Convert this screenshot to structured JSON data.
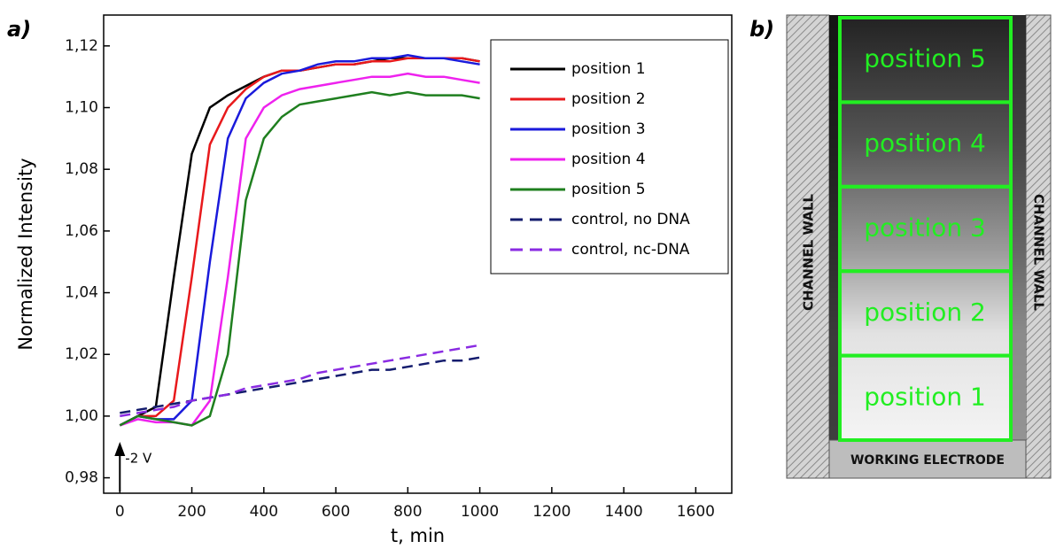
{
  "chart_data": {
    "type": "line",
    "panel_label": "a)",
    "x_label": "t, min",
    "y_label": "Normalized Intensity",
    "annotation": {
      "text": "-2 V",
      "x": 0
    },
    "x": [
      0,
      50,
      100,
      150,
      200,
      250,
      300,
      350,
      400,
      450,
      500,
      550,
      600,
      650,
      700,
      750,
      800,
      850,
      900,
      950,
      1000
    ],
    "series": [
      {
        "name": "position 1",
        "color": "#000000",
        "line_style": "solid",
        "values": [
          0.997,
          1.0,
          1.003,
          1.045,
          1.085,
          1.1,
          1.104,
          1.107,
          1.11,
          1.112,
          1.112,
          1.113,
          1.114,
          1.114,
          1.115,
          1.116,
          1.116,
          1.116,
          1.116,
          1.116,
          1.115
        ]
      },
      {
        "name": "position 2",
        "color": "#e8191c",
        "line_style": "solid",
        "values": [
          0.997,
          1.0,
          1.0,
          1.005,
          1.045,
          1.088,
          1.1,
          1.106,
          1.11,
          1.112,
          1.112,
          1.113,
          1.114,
          1.114,
          1.115,
          1.115,
          1.116,
          1.116,
          1.116,
          1.116,
          1.115
        ]
      },
      {
        "name": "position 3",
        "color": "#1a1adb",
        "line_style": "solid",
        "values": [
          0.997,
          1.0,
          0.999,
          0.999,
          1.005,
          1.05,
          1.09,
          1.103,
          1.108,
          1.111,
          1.112,
          1.114,
          1.115,
          1.115,
          1.116,
          1.116,
          1.117,
          1.116,
          1.116,
          1.115,
          1.114
        ]
      },
      {
        "name": "position 4",
        "color": "#ee22ee",
        "line_style": "solid",
        "values": [
          0.997,
          0.999,
          0.998,
          0.998,
          0.997,
          1.005,
          1.045,
          1.09,
          1.1,
          1.104,
          1.106,
          1.107,
          1.108,
          1.109,
          1.11,
          1.11,
          1.111,
          1.11,
          1.11,
          1.109,
          1.108
        ]
      },
      {
        "name": "position 5",
        "color": "#1f7f1f",
        "line_style": "solid",
        "values": [
          0.997,
          1.0,
          0.999,
          0.998,
          0.997,
          1.0,
          1.02,
          1.07,
          1.09,
          1.097,
          1.101,
          1.102,
          1.103,
          1.104,
          1.105,
          1.104,
          1.105,
          1.104,
          1.104,
          1.104,
          1.103
        ]
      },
      {
        "name": "control, no DNA",
        "color": "#141c6e",
        "line_style": "dashed",
        "values": [
          1.001,
          1.002,
          1.003,
          1.004,
          1.005,
          1.006,
          1.007,
          1.008,
          1.009,
          1.01,
          1.011,
          1.012,
          1.013,
          1.014,
          1.015,
          1.015,
          1.016,
          1.017,
          1.018,
          1.018,
          1.019
        ]
      },
      {
        "name": "control, nc-DNA",
        "color": "#8a2be2",
        "line_style": "dashed",
        "values": [
          1.0,
          1.001,
          1.002,
          1.003,
          1.005,
          1.006,
          1.007,
          1.009,
          1.01,
          1.011,
          1.012,
          1.014,
          1.015,
          1.016,
          1.017,
          1.018,
          1.019,
          1.02,
          1.021,
          1.022,
          1.023
        ]
      }
    ],
    "xlim": [
      -45,
      1700
    ],
    "xticks": [
      0,
      200,
      400,
      600,
      800,
      1000,
      1200,
      1400,
      1600
    ],
    "ylim": [
      0.975,
      1.13
    ],
    "yticks": [
      {
        "value": 0.98,
        "label": "0,98"
      },
      {
        "value": 1.0,
        "label": "1,00"
      },
      {
        "value": 1.02,
        "label": "1,02"
      },
      {
        "value": 1.04,
        "label": "1,04"
      },
      {
        "value": 1.06,
        "label": "1,06"
      },
      {
        "value": 1.08,
        "label": "1,08"
      },
      {
        "value": 1.1,
        "label": "1,10"
      },
      {
        "value": 1.12,
        "label": "1,12"
      }
    ],
    "legend": "top-right"
  },
  "panel_b": {
    "label": "b)",
    "regions": [
      "position 5",
      "position 4",
      "position 3",
      "position 2",
      "position 1"
    ],
    "wall_left": "CHANNEL WALL",
    "wall_right": "CHANNEL WALL",
    "electrode": "WORKING ELECTRODE"
  }
}
